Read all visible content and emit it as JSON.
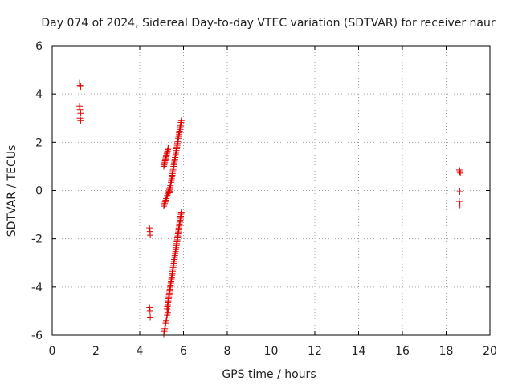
{
  "chart_data": {
    "type": "scatter",
    "title": "Day 074 of 2024, Sidereal Day-to-day VTEC variation (SDTVAR) for receiver naur",
    "xlabel": "GPS time / hours",
    "ylabel": "SDTVAR / TECUs",
    "xlim": [
      0,
      20
    ],
    "ylim": [
      -6,
      6
    ],
    "x_ticks": [
      0,
      2,
      4,
      6,
      8,
      10,
      12,
      14,
      16,
      18,
      20
    ],
    "y_ticks": [
      -6,
      -4,
      -2,
      0,
      2,
      4,
      6
    ],
    "x_tick_labels": [
      "0",
      "2",
      "4",
      "6",
      "8",
      "10",
      "12",
      "14",
      "16",
      "18",
      "20"
    ],
    "y_tick_labels": [
      "-6",
      "-4",
      "-2",
      "0",
      "2",
      "4",
      "6"
    ],
    "grid": true,
    "marker": "+",
    "marker_color": "#e00000",
    "series": [
      {
        "name": "SDTVAR",
        "points": [
          [
            1.25,
            4.45
          ],
          [
            1.27,
            4.35
          ],
          [
            1.3,
            4.3
          ],
          [
            1.25,
            3.5
          ],
          [
            1.27,
            3.35
          ],
          [
            1.3,
            3.2
          ],
          [
            1.27,
            3.0
          ],
          [
            1.3,
            2.9
          ],
          [
            4.45,
            -1.55
          ],
          [
            4.47,
            -1.7
          ],
          [
            4.48,
            -1.85
          ],
          [
            4.45,
            -4.85
          ],
          [
            4.47,
            -5.0
          ],
          [
            4.48,
            -5.25
          ],
          [
            18.6,
            0.85
          ],
          [
            18.62,
            0.78
          ],
          [
            18.65,
            0.72
          ],
          [
            18.62,
            -0.05
          ],
          [
            18.6,
            -0.45
          ],
          [
            18.63,
            -0.6
          ]
        ],
        "segments": [
          {
            "x0": 5.1,
            "x1": 5.3,
            "y0": 1.0,
            "y1": 1.75,
            "n": 14
          },
          {
            "x0": 5.1,
            "x1": 5.35,
            "y0": -0.65,
            "y1": 0.05,
            "n": 12
          },
          {
            "x0": 5.35,
            "x1": 5.9,
            "y0": -0.1,
            "y1": 2.9,
            "n": 42
          },
          {
            "x0": 5.1,
            "x1": 5.3,
            "y0": -5.95,
            "y1": -4.95,
            "n": 10
          },
          {
            "x0": 5.25,
            "x1": 5.9,
            "y0": -4.9,
            "y1": -0.9,
            "n": 50
          }
        ]
      }
    ]
  }
}
